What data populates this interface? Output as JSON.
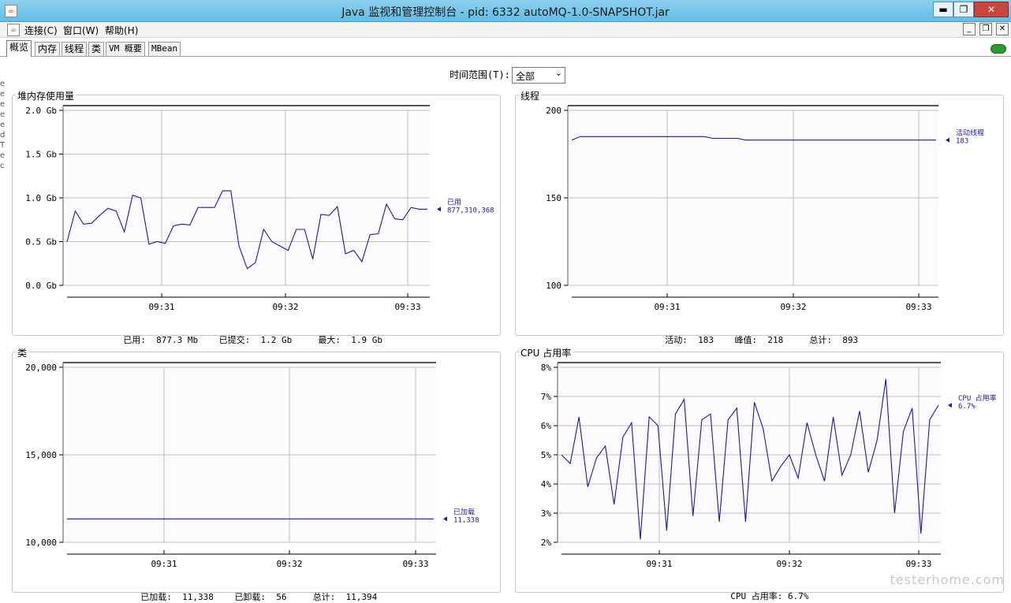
{
  "window": {
    "title": "Java 监视和管理控制台 - pid: 6332 autoMQ-1.0-SNAPSHOT.jar",
    "minimize": "▬",
    "restore": "❐",
    "close": "✕"
  },
  "menu": {
    "items": [
      "连接(C)",
      "窗口(W)",
      "帮助(H)"
    ],
    "inner_minimize": "_",
    "inner_restore": "❐",
    "inner_close": "✕"
  },
  "tabs": [
    "概览",
    "内存",
    "线程",
    "类",
    "VM 概要",
    "MBean"
  ],
  "active_tab": "概览",
  "time_range": {
    "label": "时间范围(T):",
    "value": "全部"
  },
  "left_strip": "e\ne\ne\ne\ne\nd\nT\ne\nco",
  "colors": {
    "line": "#1c1c8c",
    "grid": "#c0c0c0",
    "plot_bg": "#fdfafd",
    "label": "#1c1c8c"
  },
  "chart_data": [
    {
      "type": "line",
      "title": "堆内存使用量",
      "y_ticks": [
        "2.0 Gb",
        "1.5 Gb",
        "1.0 Gb",
        "0.5 Gb",
        "0.0 Gb"
      ],
      "ylim": [
        0,
        2.0
      ],
      "x_ticks": [
        "09:31",
        "09:32",
        "09:33"
      ],
      "series": [
        {
          "name": "已用",
          "last_value": "877,310,368",
          "values": [
            0.5,
            0.85,
            0.7,
            0.71,
            0.8,
            0.88,
            0.85,
            0.61,
            1.03,
            1.0,
            0.47,
            0.5,
            0.48,
            0.68,
            0.7,
            0.69,
            0.89,
            0.89,
            0.89,
            1.08,
            1.08,
            0.45,
            0.19,
            0.26,
            0.64,
            0.5,
            0.45,
            0.4,
            0.64,
            0.64,
            0.3,
            0.81,
            0.8,
            0.9,
            0.36,
            0.4,
            0.27,
            0.58,
            0.59,
            0.93,
            0.76,
            0.75,
            0.89,
            0.87,
            0.87
          ]
        }
      ],
      "summary": [
        {
          "label": "已用:",
          "value": "877.3 Mb"
        },
        {
          "label": "已提交:",
          "value": "1.2 Gb"
        },
        {
          "label": "最大:",
          "value": "1.9 Gb"
        }
      ]
    },
    {
      "type": "line",
      "title": "线程",
      "y_ticks": [
        "200",
        "150",
        "100"
      ],
      "ylim": [
        100,
        200
      ],
      "x_ticks": [
        "09:31",
        "09:32",
        "09:33"
      ],
      "series": [
        {
          "name": "活动线程",
          "last_value": "183",
          "values": [
            183,
            185,
            185,
            185,
            185,
            185,
            185,
            185,
            185,
            185,
            185,
            185,
            185,
            185,
            185,
            185,
            185,
            184,
            184,
            184,
            184,
            183,
            183,
            183,
            183,
            183,
            183,
            183,
            183,
            183,
            183,
            183,
            183,
            183,
            183,
            183,
            183,
            183,
            183,
            183,
            183,
            183,
            183,
            183,
            183
          ]
        }
      ],
      "summary": [
        {
          "label": "活动:",
          "value": "183"
        },
        {
          "label": "峰值:",
          "value": "218"
        },
        {
          "label": "总计:",
          "value": "893"
        }
      ]
    },
    {
      "type": "line",
      "title": "类",
      "y_ticks": [
        "20,000",
        "15,000",
        "10,000"
      ],
      "ylim": [
        10000,
        20000
      ],
      "x_ticks": [
        "09:31",
        "09:32",
        "09:33"
      ],
      "series": [
        {
          "name": "已加载",
          "last_value": "11,338",
          "values": [
            11338,
            11338,
            11338,
            11338,
            11338,
            11338,
            11338,
            11338,
            11338,
            11338,
            11338
          ]
        }
      ],
      "summary": [
        {
          "label": "已加载:",
          "value": "11,338"
        },
        {
          "label": "已卸载:",
          "value": "56"
        },
        {
          "label": "总计:",
          "value": "11,394"
        }
      ]
    },
    {
      "type": "line",
      "title": "CPU 占用率",
      "y_ticks": [
        "8%",
        "7%",
        "6%",
        "5%",
        "4%",
        "3%",
        "2%"
      ],
      "ylim": [
        2,
        8
      ],
      "x_ticks": [
        "09:31",
        "09:32",
        "09:33"
      ],
      "series": [
        {
          "name": "CPU 占用率",
          "last_value": "6.7%",
          "values": [
            5.0,
            4.7,
            6.3,
            3.9,
            4.9,
            5.3,
            3.3,
            5.6,
            6.1,
            2.1,
            6.3,
            6.0,
            2.4,
            6.4,
            6.9,
            2.9,
            6.2,
            6.4,
            2.7,
            6.2,
            6.6,
            2.7,
            6.8,
            5.9,
            4.1,
            4.6,
            5.0,
            4.2,
            6.1,
            5.0,
            4.1,
            6.3,
            4.3,
            5.0,
            6.5,
            4.4,
            5.5,
            7.6,
            3.0,
            5.8,
            6.6,
            2.3,
            6.2,
            6.7
          ]
        }
      ],
      "summary": [
        {
          "label": "CPU 占用率:",
          "value": "6.7%"
        }
      ]
    }
  ],
  "watermark": "testerhome.com"
}
